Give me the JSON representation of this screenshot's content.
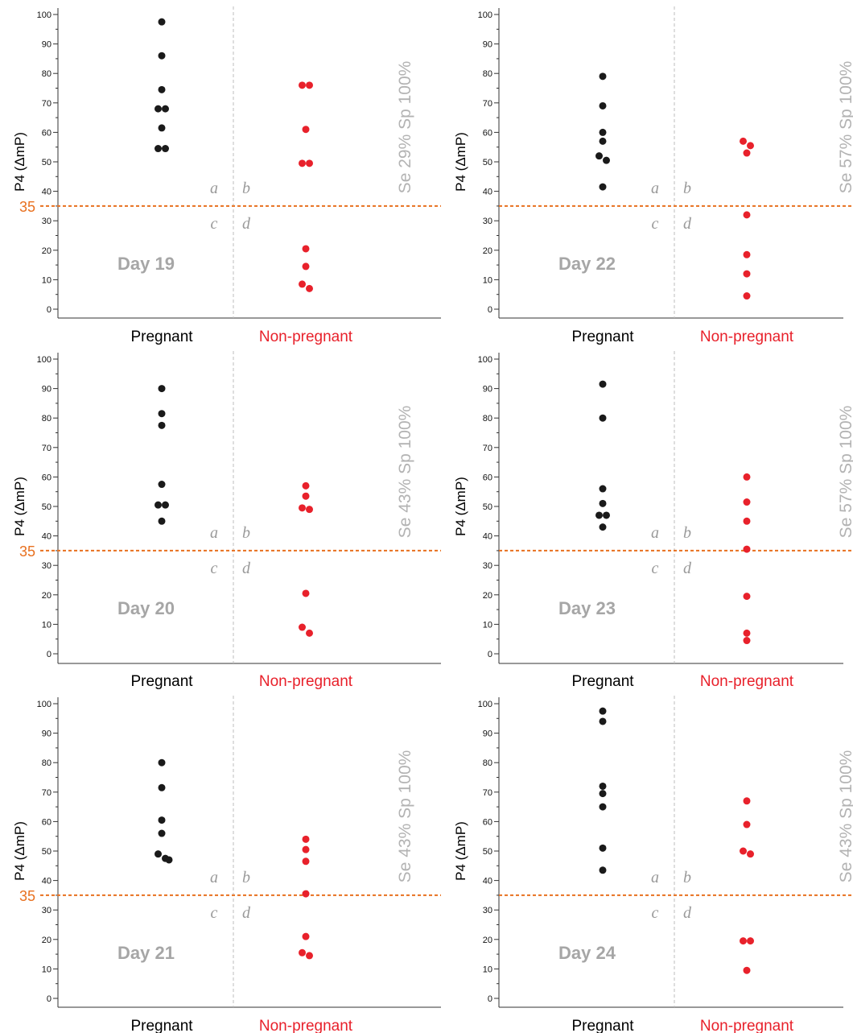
{
  "colors": {
    "pregnant": "#1a1a1a",
    "non_pregnant": "#e8212b",
    "threshold": "#e8701f",
    "divider": "#bdbdbd",
    "annotation": "#a6a6a6"
  },
  "chart_data": [
    {
      "type": "scatter",
      "title": "Day 19",
      "ylabel": "P4 (ΔmP)",
      "ylim": [
        0,
        100
      ],
      "yticks": [
        0,
        10,
        20,
        30,
        40,
        50,
        60,
        70,
        80,
        90,
        100
      ],
      "categories": [
        "Pregnant",
        "Non-pregnant"
      ],
      "threshold": 35,
      "threshold_label": "35",
      "sensitivity_specificity": "Se 29% Sp 100%",
      "quadrants": [
        "a",
        "b",
        "c",
        "d"
      ],
      "series": [
        {
          "values": [
            97.5,
            86,
            74.5,
            68,
            68,
            61.5,
            54.5,
            54.5
          ]
        },
        {
          "values": [
            76,
            76,
            61,
            49.5,
            49.5,
            20.5,
            14.5,
            8.5,
            7
          ]
        }
      ]
    },
    {
      "type": "scatter",
      "title": "Day 22",
      "ylabel": "P4 (ΔmP)",
      "ylim": [
        0,
        100
      ],
      "yticks": [
        0,
        10,
        20,
        30,
        40,
        50,
        60,
        70,
        80,
        90,
        100
      ],
      "categories": [
        "Pregnant",
        "Non-pregnant"
      ],
      "threshold": 35,
      "threshold_label": "",
      "sensitivity_specificity": "Se 57% Sp 100%",
      "quadrants": [
        "a",
        "b",
        "c",
        "d"
      ],
      "series": [
        {
          "values": [
            79,
            69,
            60,
            57,
            52,
            50.5,
            41.5
          ]
        },
        {
          "values": [
            57,
            55.5,
            53,
            32,
            18.5,
            12,
            4.5
          ]
        }
      ]
    },
    {
      "type": "scatter",
      "title": "Day 20",
      "ylabel": "P4 (ΔmP)",
      "ylim": [
        0,
        100
      ],
      "yticks": [
        0,
        10,
        20,
        30,
        40,
        50,
        60,
        70,
        80,
        90,
        100
      ],
      "categories": [
        "Pregnant",
        "Non-pregnant"
      ],
      "threshold": 35,
      "threshold_label": "35",
      "sensitivity_specificity": "Se 43% Sp 100%",
      "quadrants": [
        "a",
        "b",
        "c",
        "d"
      ],
      "series": [
        {
          "values": [
            90,
            81.5,
            77.5,
            57.5,
            50.5,
            50.5,
            45
          ]
        },
        {
          "values": [
            57,
            53.5,
            49.5,
            49,
            20.5,
            9,
            7
          ]
        }
      ]
    },
    {
      "type": "scatter",
      "title": "Day 23",
      "ylabel": "P4 (ΔmP)",
      "ylim": [
        0,
        100
      ],
      "yticks": [
        0,
        10,
        20,
        30,
        40,
        50,
        60,
        70,
        80,
        90,
        100
      ],
      "categories": [
        "Pregnant",
        "Non-pregnant"
      ],
      "threshold": 35,
      "threshold_label": "",
      "sensitivity_specificity": "Se 57% Sp 100%",
      "quadrants": [
        "a",
        "b",
        "c",
        "d"
      ],
      "series": [
        {
          "values": [
            91.5,
            80,
            56,
            51,
            47,
            47,
            43
          ]
        },
        {
          "values": [
            60,
            51.5,
            45,
            35.5,
            19.5,
            7,
            4.5
          ]
        }
      ]
    },
    {
      "type": "scatter",
      "title": "Day 21",
      "ylabel": "P4 (ΔmP)",
      "ylim": [
        0,
        100
      ],
      "yticks": [
        0,
        10,
        20,
        30,
        40,
        50,
        60,
        70,
        80,
        90,
        100
      ],
      "categories": [
        "Pregnant",
        "Non-pregnant"
      ],
      "threshold": 35,
      "threshold_label": "35",
      "sensitivity_specificity": "Se 43% Sp 100%",
      "quadrants": [
        "a",
        "b",
        "c",
        "d"
      ],
      "series": [
        {
          "values": [
            80,
            71.5,
            60.5,
            56,
            49,
            47.5,
            47
          ]
        },
        {
          "values": [
            54,
            50.5,
            46.5,
            35.5,
            21,
            15.5,
            14.5
          ]
        }
      ]
    },
    {
      "type": "scatter",
      "title": "Day 24",
      "ylabel": "P4 (ΔmP)",
      "ylim": [
        0,
        100
      ],
      "yticks": [
        0,
        10,
        20,
        30,
        40,
        50,
        60,
        70,
        80,
        90,
        100
      ],
      "categories": [
        "Pregnant",
        "Non-pregnant"
      ],
      "threshold": 35,
      "threshold_label": "",
      "sensitivity_specificity": "Se 43% Sp 100%",
      "quadrants": [
        "a",
        "b",
        "c",
        "d"
      ],
      "series": [
        {
          "values": [
            97.5,
            94,
            72,
            69.5,
            65,
            51,
            43.5
          ]
        },
        {
          "values": [
            67,
            59,
            50,
            49,
            19.5,
            19.5,
            9.5
          ]
        }
      ]
    }
  ]
}
